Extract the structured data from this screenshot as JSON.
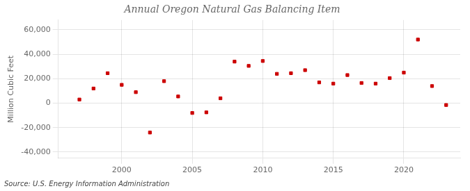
{
  "chart_data": {
    "type": "scatter",
    "title": "Annual Oregon Natural Gas Balancing Item",
    "ylabel": "Million Cubic Feet",
    "source": "Source: U.S. Energy Information Administration",
    "x": [
      1997,
      1998,
      1999,
      2000,
      2001,
      2002,
      2003,
      2004,
      2005,
      2006,
      2007,
      2008,
      2009,
      2010,
      2011,
      2012,
      2013,
      2014,
      2015,
      2016,
      2017,
      2018,
      2019,
      2020,
      2021,
      2022,
      2023
    ],
    "values": [
      3000,
      12000,
      24500,
      15000,
      9000,
      -24000,
      18000,
      5500,
      -8000,
      -7500,
      4000,
      34000,
      30500,
      34500,
      24000,
      24500,
      27000,
      17000,
      16000,
      23000,
      16500,
      16000,
      20500,
      25000,
      52000,
      14000,
      -1500
    ],
    "color": "#cc0000",
    "marker": "square",
    "xlim": [
      1995.5,
      2024
    ],
    "xticks": [
      2000,
      2005,
      2010,
      2015,
      2020
    ],
    "ylim": [
      -45000,
      68000
    ],
    "yticks": [
      {
        "value": -40000,
        "label": "-40,000"
      },
      {
        "value": -20000,
        "label": "-20,000"
      },
      0,
      {
        "value": 20000,
        "label": "20,000"
      },
      {
        "value": 40000,
        "label": "40,000"
      },
      {
        "value": 60000,
        "label": "60,000"
      }
    ],
    "grid": true
  }
}
